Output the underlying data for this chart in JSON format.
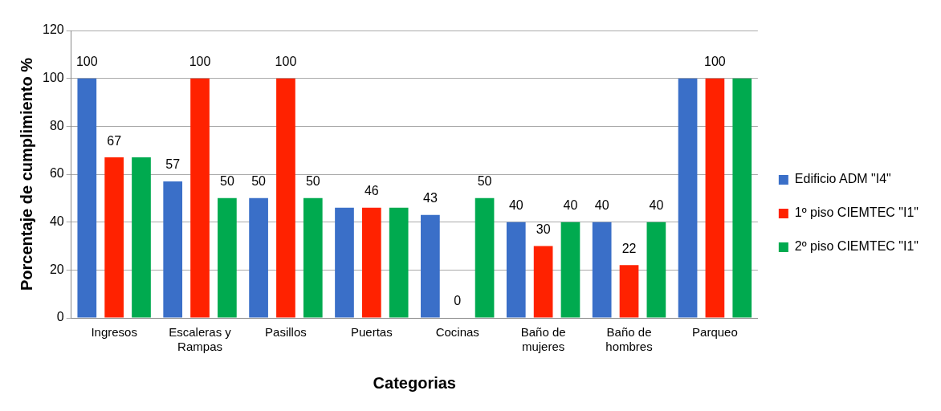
{
  "chart_data": {
    "type": "bar",
    "xlabel": "Categorias",
    "ylabel": "Porcentaje de cumplimiento %",
    "categories": [
      "Ingresos",
      "Escaleras y Rampas",
      "Pasillos",
      "Puertas",
      "Cocinas",
      "Baño de mujeres",
      "Baño de hombres",
      "Parqueo"
    ],
    "series": [
      {
        "name": "Edificio ADM \"I4\"",
        "color": "#3a6fc8",
        "values": [
          100,
          57,
          50,
          46,
          43,
          40,
          40,
          100
        ],
        "value_labels": [
          "100",
          "57",
          "50",
          null,
          "43",
          "40",
          "40",
          null
        ]
      },
      {
        "name": "1º piso CIEMTEC \"I1\"",
        "color": "#ff2200",
        "values": [
          67,
          100,
          100,
          46,
          0,
          30,
          22,
          100
        ],
        "value_labels": [
          "67",
          "100",
          "100",
          "46",
          "0",
          "30",
          "22",
          "100"
        ]
      },
      {
        "name": "2º piso CIEMTEC \"I1\"",
        "color": "#00aa4f",
        "values": [
          67,
          50,
          50,
          46,
          50,
          40,
          40,
          100
        ],
        "value_labels": [
          null,
          "50",
          "50",
          null,
          "50",
          "40",
          "40",
          null
        ]
      }
    ],
    "ylim": [
      0,
      120
    ],
    "yticks": [
      0,
      20,
      40,
      60,
      80,
      100,
      120
    ],
    "grid": "y",
    "legend": "right"
  }
}
